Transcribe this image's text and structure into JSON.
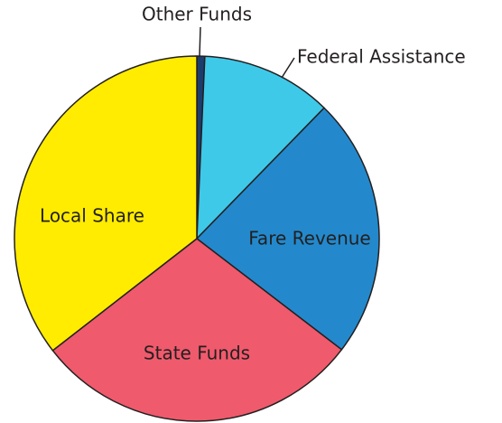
{
  "chart_data": {
    "type": "pie",
    "categories": [
      "Other Funds",
      "Federal Assistance",
      "Fare Revenue",
      "State Funds",
      "Local Share"
    ],
    "values": [
      0.7,
      11.6,
      23.1,
      29.1,
      35.5
    ],
    "colors": [
      "#1b3d6e",
      "#3ec9e9",
      "#2389cc",
      "#ef5a6c",
      "#ffec00"
    ]
  }
}
